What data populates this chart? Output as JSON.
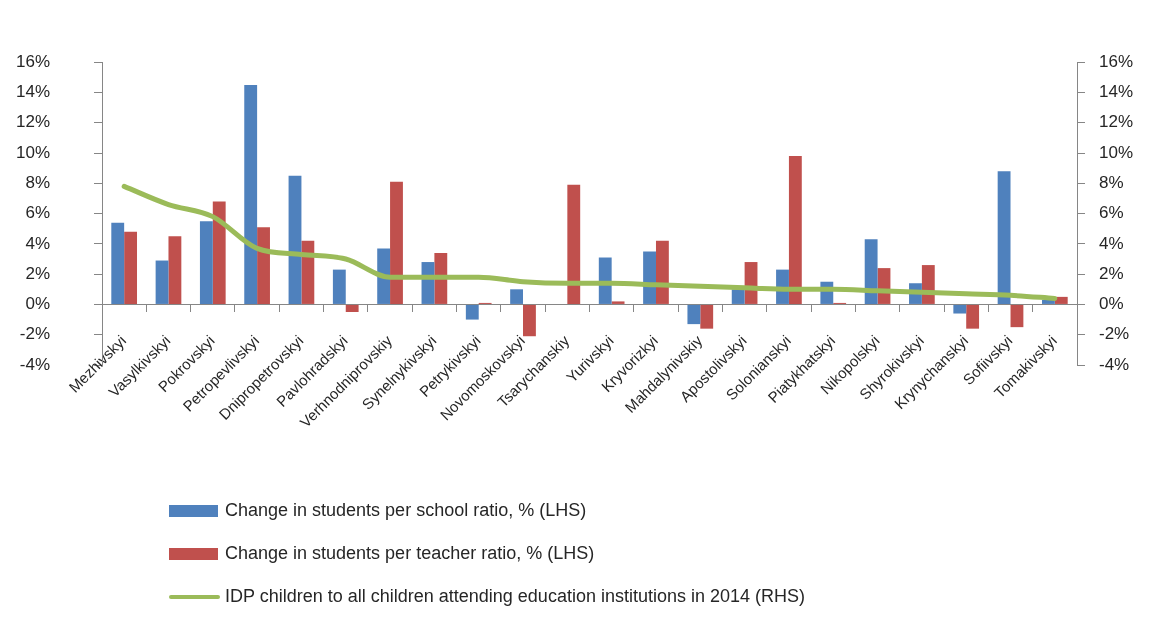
{
  "chart_data": {
    "type": "bar",
    "categories": [
      "Mezhivskyi",
      "Vasylkivskyi",
      "Pokrovskyi",
      "Petropevlivskyi",
      "Dnipropetrovskyi",
      "Pavlohradskyi",
      "Verhnodniprovskiy",
      "Synelnykivskyi",
      "Petrykivskyi",
      "Novomoskovskyi",
      "Tsarychanskiy",
      "Yurivskyi",
      "Kryvorizkyi",
      "Mahdalynivskiy",
      "Apostolivskyi",
      "Solonianskyi",
      "Piatykhatskyi",
      "Nikopolskyi",
      "Shyrokivskyi",
      "Krynychanskyi",
      "Sofiivskyi",
      "Tomakivskyi"
    ],
    "series": [
      {
        "name": "Change in students per school ratio, % (LHS)",
        "color": "#4f81bd",
        "values": [
          5.4,
          2.9,
          5.5,
          14.5,
          8.5,
          2.3,
          3.7,
          2.8,
          -1.0,
          1.0,
          null,
          3.1,
          3.5,
          -1.3,
          1.0,
          2.3,
          1.5,
          4.3,
          1.4,
          -0.6,
          8.8,
          0.3
        ]
      },
      {
        "name": "Change in students per teacher ratio, % (LHS)",
        "color": "#c0504d",
        "values": [
          4.8,
          4.5,
          6.8,
          5.1,
          4.2,
          -0.5,
          8.1,
          3.4,
          0.1,
          -2.1,
          7.9,
          0.2,
          4.2,
          -1.6,
          2.8,
          9.8,
          0.1,
          2.4,
          2.6,
          -1.6,
          -1.5,
          0.5
        ]
      },
      {
        "name": "IDP children to all children attending education institutions in 2014 (RHS)",
        "type": "line",
        "axis": "y2",
        "marker": "none",
        "color": "#9bbb59",
        "values": [
          7.8,
          6.6,
          5.8,
          3.7,
          3.3,
          3.0,
          1.8,
          1.8,
          1.8,
          1.5,
          1.4,
          1.4,
          1.3,
          1.2,
          1.1,
          1.0,
          1.0,
          0.9,
          0.8,
          0.7,
          0.6,
          0.4
        ]
      }
    ],
    "ylim": [
      -4,
      16
    ],
    "yticks": [
      {
        "value": -4,
        "label": "-4%"
      },
      {
        "value": -2,
        "label": "-2%"
      },
      {
        "value": 0,
        "label": "0%"
      },
      {
        "value": 2,
        "label": "2%"
      },
      {
        "value": 4,
        "label": "4%"
      },
      {
        "value": 6,
        "label": "6%"
      },
      {
        "value": 8,
        "label": "8%"
      },
      {
        "value": 10,
        "label": "10%"
      },
      {
        "value": 12,
        "label": "12%"
      },
      {
        "value": 14,
        "label": "14%"
      },
      {
        "value": 16,
        "label": "16%"
      }
    ],
    "y2lim": [
      -4,
      16
    ],
    "y2ticks": [
      {
        "value": -4,
        "label": "-4%"
      },
      {
        "value": -2,
        "label": "-2%"
      },
      {
        "value": 0,
        "label": "0%"
      },
      {
        "value": 2,
        "label": "2%"
      },
      {
        "value": 4,
        "label": "4%"
      },
      {
        "value": 6,
        "label": "6%"
      },
      {
        "value": 8,
        "label": "8%"
      },
      {
        "value": 10,
        "label": "10%"
      },
      {
        "value": 12,
        "label": "12%"
      },
      {
        "value": 14,
        "label": "14%"
      },
      {
        "value": 16,
        "label": "16%"
      }
    ],
    "legend": "bottom"
  }
}
